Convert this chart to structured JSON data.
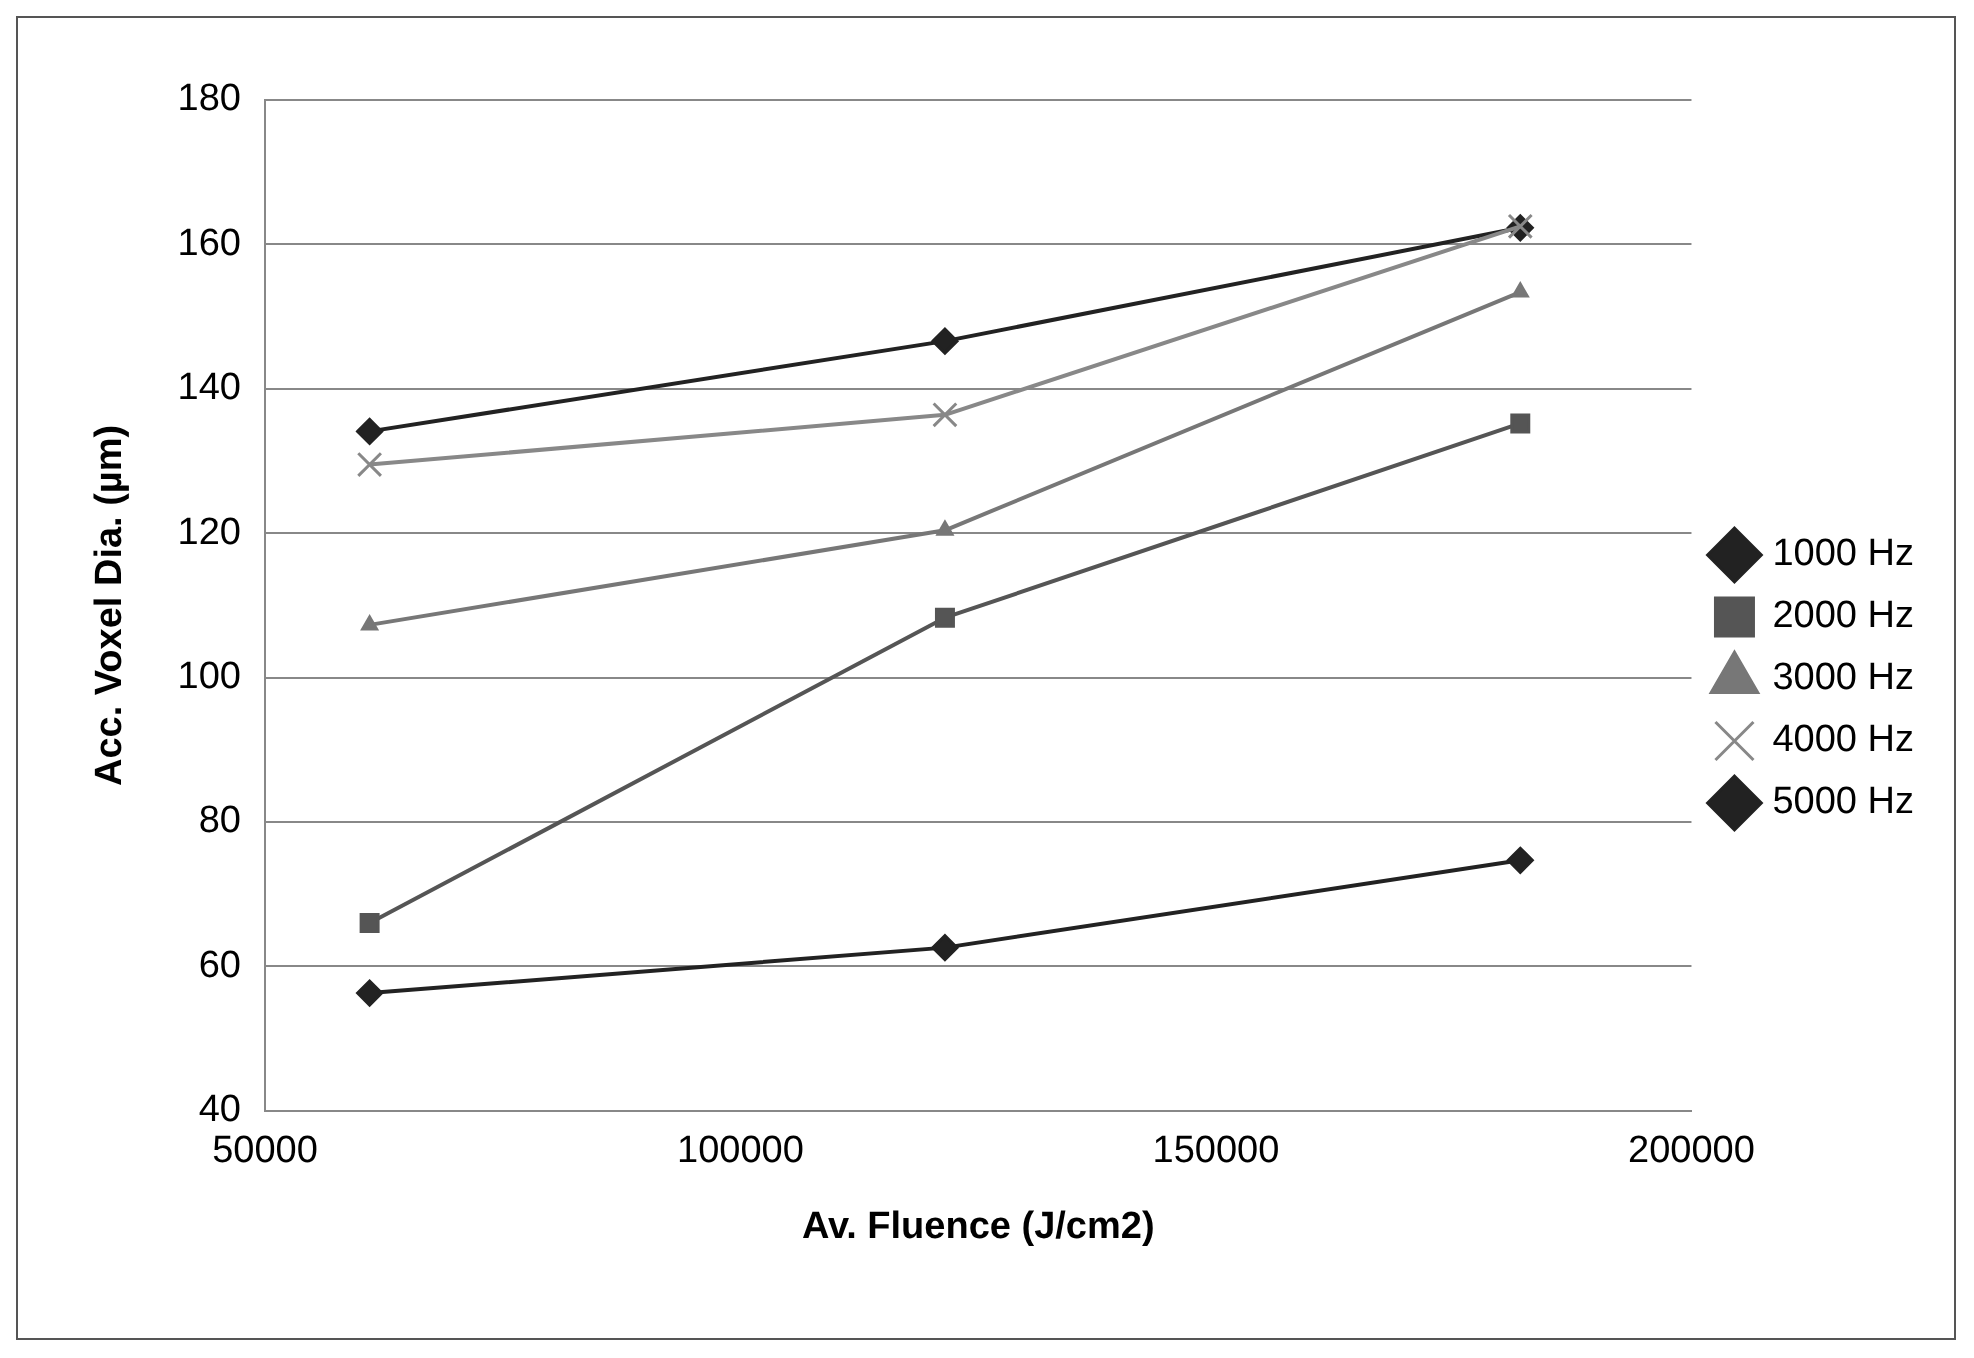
{
  "chart_data": {
    "type": "line",
    "xlabel": "Av. Fluence (J/cm2)",
    "ylabel": "Acc. Voxel Dia. (µm)",
    "x": [
      61000,
      121500,
      182000
    ],
    "xlim": [
      50000,
      200000
    ],
    "xticks": [
      50000,
      100000,
      150000,
      200000
    ],
    "ylim": [
      40,
      180
    ],
    "yticks": [
      40,
      60,
      80,
      100,
      120,
      140,
      160,
      180
    ],
    "grid": "y",
    "legend": "right",
    "series": [
      {
        "name": "1000 Hz",
        "color": "#222222",
        "marker": "diamond",
        "values": [
          56.3,
          62.6,
          74.7
        ]
      },
      {
        "name": "2000 Hz",
        "color": "#555555",
        "marker": "square",
        "values": [
          66,
          108.3,
          135.2
        ]
      },
      {
        "name": "3000 Hz",
        "color": "#777777",
        "marker": "triangle",
        "values": [
          107.3,
          120.4,
          153.4
        ]
      },
      {
        "name": "4000 Hz",
        "color": "#888888",
        "marker": "cross",
        "values": [
          129.5,
          136.4,
          162.5
        ]
      },
      {
        "name": "5000 Hz",
        "color": "#222222",
        "marker": "diamond",
        "values": [
          134.1,
          146.6,
          162.3
        ]
      }
    ]
  }
}
